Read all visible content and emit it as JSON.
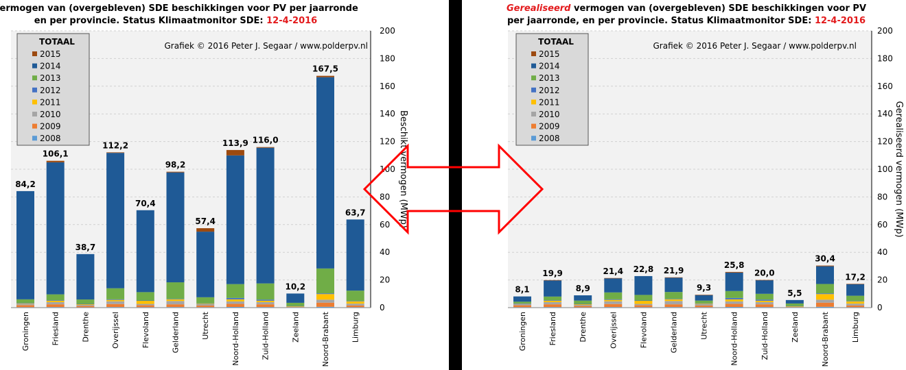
{
  "colors": {
    "2015": "#9c4a10",
    "2014": "#1f5a96",
    "2013": "#70ad47",
    "2012": "#4472c4",
    "2011": "#ffc000",
    "2010": "#a5a5a5",
    "2009": "#ed7d31",
    "2008": "#5b9bd5",
    "plot_bg": "#f2f2f2",
    "legend_bg": "#d9d9d9",
    "arrow": "#ff0000",
    "divider": "#000000"
  },
  "chart_data": [
    {
      "type": "bar",
      "stacked": true,
      "title_line1": "Vermogen van (overgebleven) SDE beschikkingen voor PV per jaarronde",
      "title_line2_prefix": "en per provincie. Status Klimaatmonitor SDE: ",
      "title_date": "12-4-2016",
      "copyright": "Grafiek © 2016 Peter J. Segaar / www.polderpv.nl",
      "ylabel": "Beschikt vermogen (MWp)",
      "ylim": [
        0,
        200
      ],
      "yticks": [
        "0",
        "20",
        "40",
        "60",
        "80",
        "100",
        "120",
        "140",
        "160",
        "180",
        "200"
      ],
      "legend_title": "TOTAAL",
      "legend_position": "top-left",
      "legend": [
        "2015",
        "2014",
        "2013",
        "2012",
        "2011",
        "2010",
        "2009",
        "2008"
      ],
      "categories": [
        "Groningen",
        "Friesland",
        "Drenthe",
        "Overijssel",
        "Flevoland",
        "Gelderland",
        "Utrecht",
        "Noord-Holland",
        "Zuid-Holland",
        "Zeeland",
        "Noord-Brabant",
        "Limburg"
      ],
      "totals": [
        "84,2",
        "106,1",
        "38,7",
        "112,2",
        "70,4",
        "98,2",
        "57,4",
        "113,9",
        "116,0",
        "10,2",
        "167,5",
        "63,7"
      ],
      "series": [
        {
          "name": "2008",
          "values": [
            0.3,
            0.4,
            0.2,
            0.4,
            0.3,
            0.4,
            0.3,
            0.5,
            0.4,
            0.1,
            0.6,
            0.3
          ]
        },
        {
          "name": "2009",
          "values": [
            1.5,
            2.0,
            1.0,
            2.2,
            1.4,
            2.0,
            1.2,
            2.2,
            2.0,
            0.3,
            3.0,
            1.2
          ]
        },
        {
          "name": "2010",
          "values": [
            1.0,
            1.6,
            0.8,
            2.0,
            1.0,
            2.4,
            1.0,
            1.8,
            1.6,
            0.2,
            2.2,
            1.4
          ]
        },
        {
          "name": "2011",
          "values": [
            0.4,
            1.0,
            0.6,
            1.0,
            2.3,
            1.2,
            0.4,
            1.5,
            1.0,
            0.5,
            4.0,
            1.6
          ]
        },
        {
          "name": "2012",
          "values": [
            0.1,
            0.4,
            0.1,
            0.4,
            0.2,
            0.3,
            0.2,
            1.0,
            0.8,
            0.1,
            0.5,
            0.3
          ]
        },
        {
          "name": "2013",
          "values": [
            2.7,
            4.2,
            3.2,
            8.0,
            6.0,
            12.0,
            4.4,
            10.0,
            11.7,
            2.3,
            18.0,
            7.5
          ]
        },
        {
          "name": "2014",
          "values": [
            78.2,
            95.4,
            32.8,
            97.8,
            59.2,
            79.4,
            47.4,
            93.0,
            98.0,
            6.7,
            138.2,
            51.4
          ]
        },
        {
          "name": "2015",
          "values": [
            0.0,
            1.1,
            0.0,
            0.4,
            0.0,
            0.5,
            2.5,
            3.9,
            0.5,
            0.0,
            1.0,
            0.0
          ]
        }
      ]
    },
    {
      "type": "bar",
      "stacked": true,
      "title_line1_red": "Gerealiseerd",
      "title_line1": " vermogen van (overgebleven) SDE beschikkingen voor PV",
      "title_line2_prefix": "per jaarronde,  en per provincie. Status Klimaatmonitor SDE: ",
      "title_date": "12-4-2016",
      "copyright": "Grafiek © 2016 Peter J. Segaar / www.polderpv.nl",
      "ylabel": "Gerealiseerd vermogen (MWp)",
      "ylim": [
        0,
        200
      ],
      "yticks": [
        "0",
        "20",
        "40",
        "60",
        "80",
        "100",
        "120",
        "140",
        "160",
        "180",
        "200"
      ],
      "legend_title": "TOTAAL",
      "legend_position": "top-left",
      "legend": [
        "2015",
        "2014",
        "2013",
        "2012",
        "2011",
        "2010",
        "2009",
        "2008"
      ],
      "categories": [
        "Groningen",
        "Friesland",
        "Drenthe",
        "Overijssel",
        "Flevoland",
        "Gelderland",
        "Utrecht",
        "Noord-Holland",
        "Zuid-Holland",
        "Zeeland",
        "Noord-Brabant",
        "Limburg"
      ],
      "totals": [
        "8,1",
        "19,9",
        "8,9",
        "21,4",
        "22,8",
        "21,9",
        "9,3",
        "25,8",
        "20,0",
        "5,5",
        "30,4",
        "17,2"
      ],
      "series": [
        {
          "name": "2008",
          "values": [
            0.3,
            0.4,
            0.2,
            0.4,
            0.3,
            0.4,
            0.3,
            0.5,
            0.4,
            0.1,
            0.6,
            0.3
          ]
        },
        {
          "name": "2009",
          "values": [
            1.4,
            2.0,
            1.0,
            2.2,
            1.4,
            2.0,
            1.2,
            2.2,
            2.0,
            0.3,
            3.0,
            1.2
          ]
        },
        {
          "name": "2010",
          "values": [
            0.9,
            1.6,
            0.8,
            2.0,
            1.0,
            2.4,
            1.0,
            1.8,
            1.6,
            0.2,
            2.2,
            1.4
          ]
        },
        {
          "name": "2011",
          "values": [
            0.3,
            1.0,
            0.6,
            1.0,
            2.3,
            1.2,
            0.4,
            1.5,
            1.0,
            0.5,
            4.0,
            1.6
          ]
        },
        {
          "name": "2012",
          "values": [
            0.1,
            0.4,
            0.1,
            0.4,
            0.2,
            0.3,
            0.2,
            1.0,
            0.8,
            0.1,
            0.5,
            0.3
          ]
        },
        {
          "name": "2013",
          "values": [
            1.3,
            2.6,
            2.4,
            5.0,
            4.0,
            5.0,
            2.0,
            5.0,
            4.2,
            1.8,
            6.8,
            3.8
          ]
        },
        {
          "name": "2014",
          "values": [
            3.8,
            11.7,
            3.8,
            10.2,
            13.6,
            10.4,
            4.0,
            13.3,
            9.8,
            2.5,
            12.8,
            8.4
          ]
        },
        {
          "name": "2015",
          "values": [
            0.0,
            0.2,
            0.0,
            0.2,
            0.0,
            0.2,
            0.2,
            0.5,
            0.2,
            0.0,
            0.5,
            0.2
          ]
        }
      ]
    }
  ]
}
